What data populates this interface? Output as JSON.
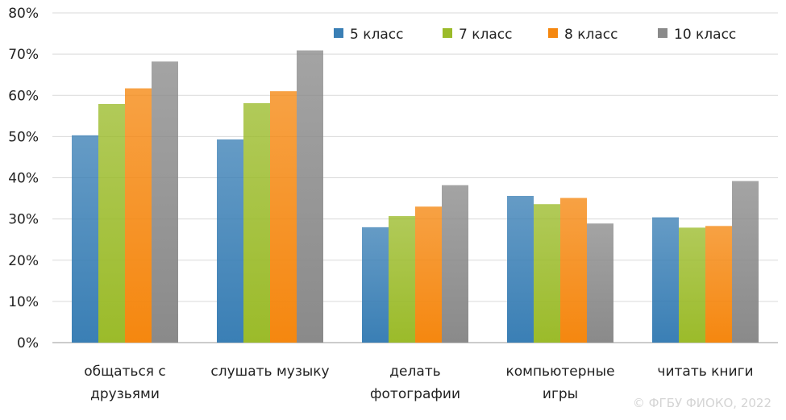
{
  "chart_data": {
    "type": "bar",
    "categories": [
      [
        "общаться с",
        "друзьями"
      ],
      [
        "слушать музыку"
      ],
      [
        "делать",
        "фотографии"
      ],
      [
        "компьютерные",
        "игры"
      ],
      [
        "читать книги"
      ]
    ],
    "series": [
      {
        "name": "5 класс",
        "values": [
          50.3,
          49.3,
          28.0,
          35.6,
          30.4
        ],
        "color": "#3a7fb5"
      },
      {
        "name": "7 класс",
        "values": [
          57.9,
          58.1,
          30.7,
          33.6,
          27.9
        ],
        "color": "#9bbb2a"
      },
      {
        "name": "8 класс",
        "values": [
          61.7,
          61.0,
          33.0,
          35.1,
          28.3
        ],
        "color": "#f5870f"
      },
      {
        "name": "10 класс",
        "values": [
          68.2,
          70.9,
          38.2,
          28.9,
          39.2
        ],
        "color": "#8a8a8a"
      }
    ],
    "ylim": [
      0,
      80
    ],
    "yticks": [
      "0%",
      "10%",
      "20%",
      "30%",
      "40%",
      "50%",
      "60%",
      "70%",
      "80%"
    ],
    "legend_position": "top-right",
    "grid": true
  },
  "watermark": "© ФГБУ ФИОКО, 2022"
}
